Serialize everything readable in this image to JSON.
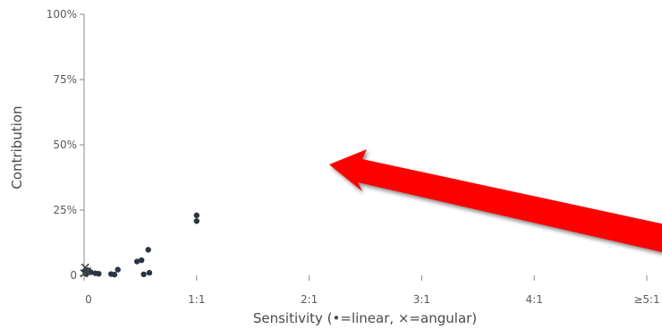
{
  "chart_data": {
    "type": "scatter",
    "xlabel": "Sensitivity (•=linear, ×=angular)",
    "ylabel": "Contribution",
    "x_ticks": [
      {
        "value": 0,
        "label": "0"
      },
      {
        "value": 1,
        "label": "1:1"
      },
      {
        "value": 2,
        "label": "2:1"
      },
      {
        "value": 3,
        "label": "3:1"
      },
      {
        "value": 4,
        "label": "4:1"
      },
      {
        "value": 5,
        "label": "≥5:1"
      }
    ],
    "y_ticks": [
      {
        "value": 0,
        "label": "0"
      },
      {
        "value": 25,
        "label": "25%"
      },
      {
        "value": 50,
        "label": "50%"
      },
      {
        "value": 75,
        "label": "75%"
      },
      {
        "value": 100,
        "label": "100%"
      }
    ],
    "xlim": [
      0,
      5
    ],
    "ylim": [
      0,
      100
    ],
    "grid": false,
    "series": [
      {
        "marker": "dot",
        "points": [
          {
            "x": 0.01,
            "y": 1.5
          },
          {
            "x": 0.02,
            "y": 0.5
          },
          {
            "x": 0.03,
            "y": 2.0
          },
          {
            "x": 0.06,
            "y": 1.2
          },
          {
            "x": 0.1,
            "y": 0.8
          },
          {
            "x": 0.13,
            "y": 0.6
          },
          {
            "x": 0.24,
            "y": 0.5
          },
          {
            "x": 0.27,
            "y": 0.3
          },
          {
            "x": 0.3,
            "y": 2.2
          },
          {
            "x": 0.47,
            "y": 5.3
          },
          {
            "x": 0.51,
            "y": 5.8
          },
          {
            "x": 0.53,
            "y": 0.4
          },
          {
            "x": 0.57,
            "y": 9.8
          },
          {
            "x": 0.58,
            "y": 1.0
          },
          {
            "x": 1.0,
            "y": 23.0
          },
          {
            "x": 1.0,
            "y": 20.8
          }
        ]
      },
      {
        "marker": "cross",
        "points": [
          {
            "x": 0.0,
            "y": 0.8
          },
          {
            "x": 0.01,
            "y": 3.0
          },
          {
            "x": 0.03,
            "y": 1.5
          }
        ]
      }
    ],
    "colors": {
      "axis": "#8a8a8a",
      "marker": "#2b3542",
      "arrow": "#ff0000"
    }
  }
}
